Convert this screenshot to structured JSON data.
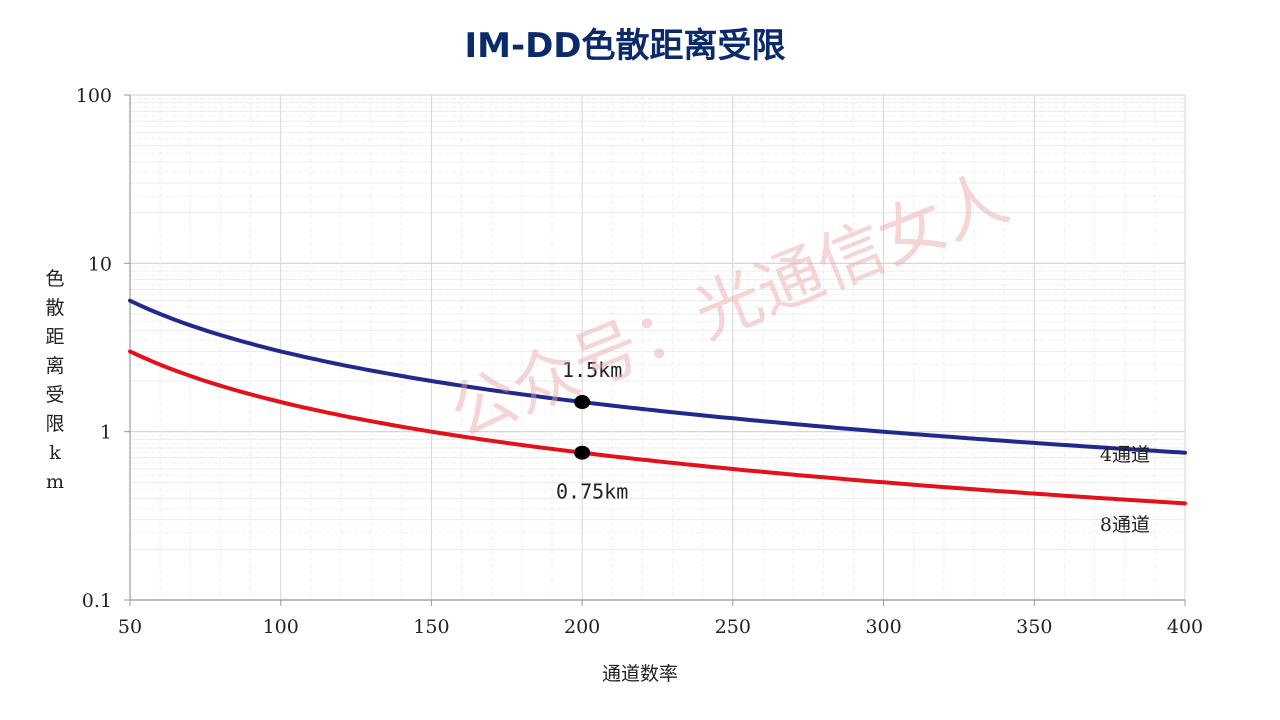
{
  "chart_data": {
    "type": "line",
    "title": "IM-DD色散距离受限",
    "xlabel": "通道数率",
    "ylabel": "色散距离受限km",
    "xlim": [
      50,
      400
    ],
    "ylim": [
      0.1,
      100
    ],
    "y_scale": "log",
    "x_ticks": [
      "50",
      "100",
      "150",
      "200",
      "250",
      "300",
      "350",
      "400"
    ],
    "y_ticks": [
      "0.1",
      "1",
      "10",
      "100"
    ],
    "grid": true,
    "colors": {
      "title": "#0b2a6b",
      "series_4": "#1f2a8c",
      "series_8": "#e3111a"
    },
    "series": [
      {
        "name": "4通道",
        "color": "#1f2a8c",
        "formula_k": 1.5
      },
      {
        "name": "8通道",
        "color": "#e3111a",
        "formula_k": 0.75
      }
    ],
    "points": [
      {
        "x": 200,
        "y": 1.5,
        "label": "1.5km"
      },
      {
        "x": 200,
        "y": 0.75,
        "label": "0.75km"
      }
    ],
    "watermark": "公众号：光通信女人"
  }
}
